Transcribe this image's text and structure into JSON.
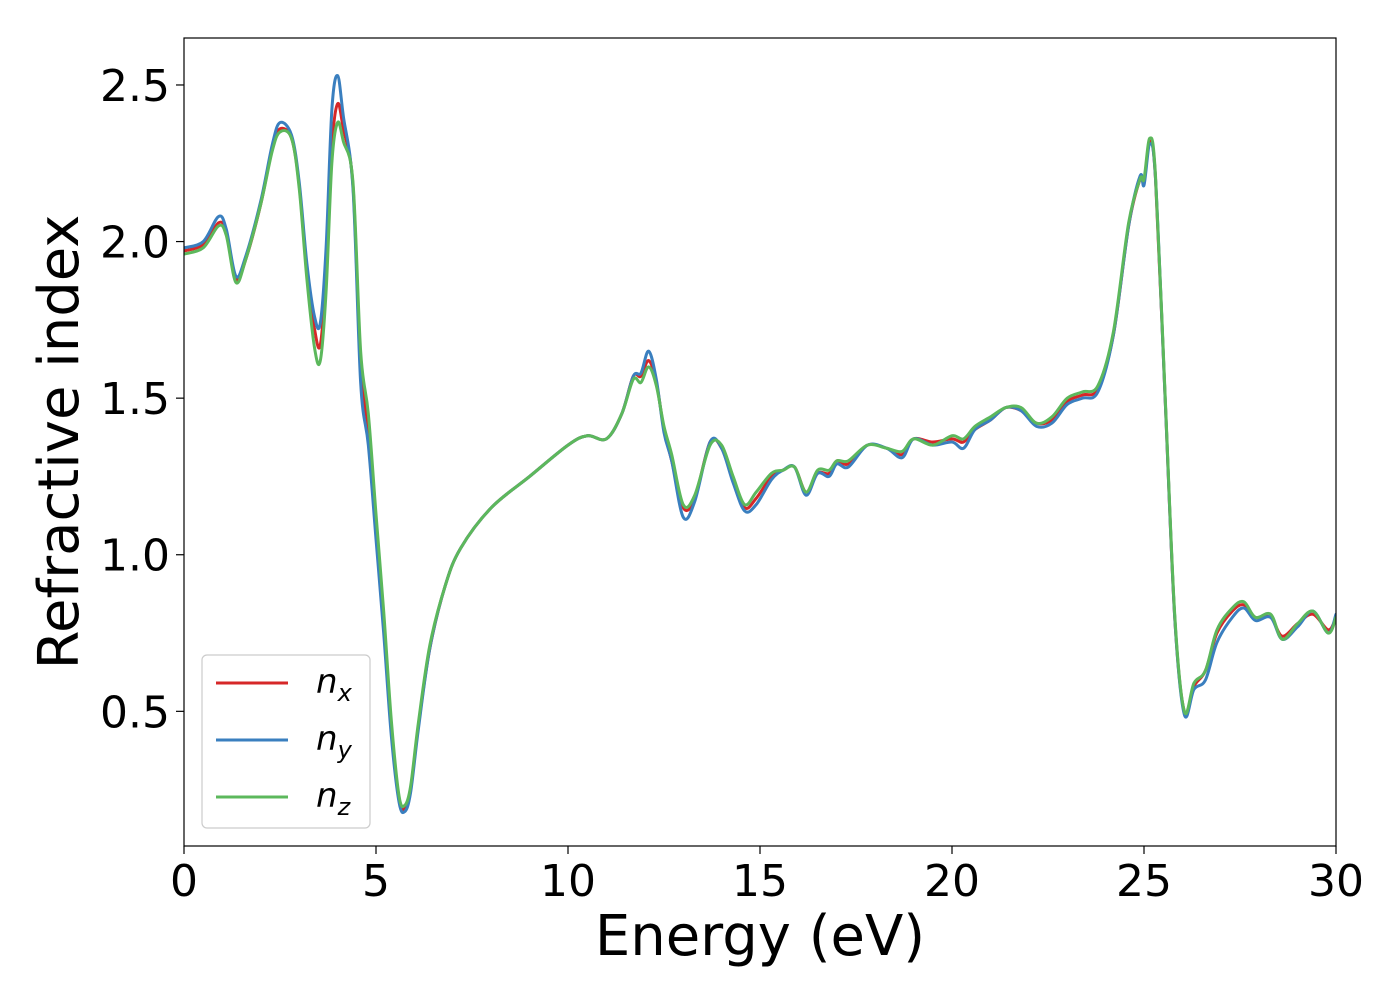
{
  "chart_data": {
    "type": "line",
    "title": "",
    "xlabel": "Energy (eV)",
    "ylabel": "Refractive index",
    "xlim": [
      0,
      30
    ],
    "ylim": [
      0.07,
      2.65
    ],
    "xticks": [
      0,
      5,
      10,
      15,
      20,
      25,
      30
    ],
    "yticks": [
      0.5,
      1.0,
      1.5,
      2.0,
      2.5
    ],
    "xtick_labels": [
      "0",
      "5",
      "10",
      "15",
      "20",
      "25",
      "30"
    ],
    "ytick_labels": [
      "0.5",
      "1.0",
      "1.5",
      "2.0",
      "2.5"
    ],
    "grid": false,
    "legend_position": "lower-left",
    "series": [
      {
        "name": "n_x",
        "label_base": "n",
        "label_sub": "x",
        "color": "#d62728",
        "points": [
          [
            0,
            1.97
          ],
          [
            0.5,
            1.99
          ],
          [
            0.9,
            2.06
          ],
          [
            1.1,
            2.03
          ],
          [
            1.35,
            1.88
          ],
          [
            1.6,
            1.94
          ],
          [
            2.0,
            2.12
          ],
          [
            2.3,
            2.3
          ],
          [
            2.5,
            2.36
          ],
          [
            2.8,
            2.33
          ],
          [
            3.0,
            2.18
          ],
          [
            3.2,
            1.9
          ],
          [
            3.4,
            1.72
          ],
          [
            3.55,
            1.67
          ],
          [
            3.7,
            1.9
          ],
          [
            3.85,
            2.3
          ],
          [
            4.0,
            2.44
          ],
          [
            4.15,
            2.36
          ],
          [
            4.4,
            2.18
          ],
          [
            4.6,
            1.6
          ],
          [
            4.8,
            1.4
          ],
          [
            5.0,
            1.1
          ],
          [
            5.2,
            0.8
          ],
          [
            5.4,
            0.45
          ],
          [
            5.6,
            0.22
          ],
          [
            5.75,
            0.19
          ],
          [
            5.9,
            0.25
          ],
          [
            6.1,
            0.45
          ],
          [
            6.4,
            0.7
          ],
          [
            6.8,
            0.9
          ],
          [
            7.2,
            1.02
          ],
          [
            8.0,
            1.15
          ],
          [
            9.0,
            1.25
          ],
          [
            10.0,
            1.35
          ],
          [
            10.5,
            1.38
          ],
          [
            11.0,
            1.37
          ],
          [
            11.4,
            1.45
          ],
          [
            11.7,
            1.57
          ],
          [
            11.9,
            1.57
          ],
          [
            12.1,
            1.62
          ],
          [
            12.3,
            1.55
          ],
          [
            12.5,
            1.4
          ],
          [
            12.7,
            1.3
          ],
          [
            13.0,
            1.15
          ],
          [
            13.3,
            1.18
          ],
          [
            13.7,
            1.36
          ],
          [
            14.0,
            1.34
          ],
          [
            14.3,
            1.24
          ],
          [
            14.6,
            1.15
          ],
          [
            14.9,
            1.18
          ],
          [
            15.3,
            1.25
          ],
          [
            15.6,
            1.27
          ],
          [
            15.9,
            1.28
          ],
          [
            16.2,
            1.2
          ],
          [
            16.5,
            1.26
          ],
          [
            16.8,
            1.26
          ],
          [
            17.0,
            1.3
          ],
          [
            17.3,
            1.29
          ],
          [
            17.8,
            1.35
          ],
          [
            18.3,
            1.34
          ],
          [
            18.7,
            1.32
          ],
          [
            19.0,
            1.37
          ],
          [
            19.5,
            1.36
          ],
          [
            20.0,
            1.37
          ],
          [
            20.3,
            1.36
          ],
          [
            20.6,
            1.4
          ],
          [
            21.0,
            1.43
          ],
          [
            21.4,
            1.47
          ],
          [
            21.8,
            1.46
          ],
          [
            22.2,
            1.42
          ],
          [
            22.6,
            1.43
          ],
          [
            23.0,
            1.49
          ],
          [
            23.4,
            1.51
          ],
          [
            23.8,
            1.53
          ],
          [
            24.2,
            1.7
          ],
          [
            24.6,
            2.05
          ],
          [
            24.9,
            2.2
          ],
          [
            25.0,
            2.19
          ],
          [
            25.15,
            2.32
          ],
          [
            25.3,
            2.2
          ],
          [
            25.55,
            1.5
          ],
          [
            25.8,
            0.8
          ],
          [
            26.05,
            0.5
          ],
          [
            26.3,
            0.58
          ],
          [
            26.6,
            0.63
          ],
          [
            26.9,
            0.75
          ],
          [
            27.3,
            0.82
          ],
          [
            27.6,
            0.84
          ],
          [
            27.9,
            0.8
          ],
          [
            28.3,
            0.8
          ],
          [
            28.6,
            0.74
          ],
          [
            29.0,
            0.78
          ],
          [
            29.4,
            0.81
          ],
          [
            29.8,
            0.76
          ],
          [
            30.0,
            0.8
          ]
        ]
      },
      {
        "name": "n_y",
        "label_base": "n",
        "label_sub": "y",
        "color": "#3a7fbf",
        "points": [
          [
            0,
            1.98
          ],
          [
            0.5,
            2.0
          ],
          [
            0.9,
            2.08
          ],
          [
            1.1,
            2.04
          ],
          [
            1.35,
            1.89
          ],
          [
            1.6,
            1.95
          ],
          [
            2.0,
            2.13
          ],
          [
            2.3,
            2.31
          ],
          [
            2.5,
            2.38
          ],
          [
            2.8,
            2.34
          ],
          [
            3.0,
            2.19
          ],
          [
            3.2,
            1.93
          ],
          [
            3.4,
            1.76
          ],
          [
            3.55,
            1.74
          ],
          [
            3.7,
            1.98
          ],
          [
            3.85,
            2.42
          ],
          [
            4.0,
            2.53
          ],
          [
            4.15,
            2.4
          ],
          [
            4.4,
            2.17
          ],
          [
            4.6,
            1.55
          ],
          [
            4.8,
            1.35
          ],
          [
            5.0,
            1.05
          ],
          [
            5.2,
            0.75
          ],
          [
            5.4,
            0.42
          ],
          [
            5.6,
            0.21
          ],
          [
            5.75,
            0.18
          ],
          [
            5.9,
            0.24
          ],
          [
            6.1,
            0.44
          ],
          [
            6.4,
            0.7
          ],
          [
            6.8,
            0.9
          ],
          [
            7.2,
            1.02
          ],
          [
            8.0,
            1.15
          ],
          [
            9.0,
            1.25
          ],
          [
            10.0,
            1.35
          ],
          [
            10.5,
            1.38
          ],
          [
            11.0,
            1.37
          ],
          [
            11.4,
            1.45
          ],
          [
            11.7,
            1.57
          ],
          [
            11.9,
            1.58
          ],
          [
            12.1,
            1.65
          ],
          [
            12.3,
            1.56
          ],
          [
            12.5,
            1.39
          ],
          [
            12.7,
            1.3
          ],
          [
            13.0,
            1.12
          ],
          [
            13.3,
            1.17
          ],
          [
            13.7,
            1.36
          ],
          [
            14.0,
            1.34
          ],
          [
            14.3,
            1.23
          ],
          [
            14.6,
            1.14
          ],
          [
            14.9,
            1.16
          ],
          [
            15.3,
            1.24
          ],
          [
            15.6,
            1.27
          ],
          [
            15.9,
            1.28
          ],
          [
            16.2,
            1.19
          ],
          [
            16.5,
            1.26
          ],
          [
            16.8,
            1.25
          ],
          [
            17.0,
            1.29
          ],
          [
            17.3,
            1.28
          ],
          [
            17.8,
            1.35
          ],
          [
            18.3,
            1.34
          ],
          [
            18.7,
            1.31
          ],
          [
            19.0,
            1.37
          ],
          [
            19.5,
            1.35
          ],
          [
            20.0,
            1.36
          ],
          [
            20.3,
            1.34
          ],
          [
            20.6,
            1.4
          ],
          [
            21.0,
            1.43
          ],
          [
            21.4,
            1.47
          ],
          [
            21.8,
            1.46
          ],
          [
            22.2,
            1.41
          ],
          [
            22.6,
            1.42
          ],
          [
            23.0,
            1.48
          ],
          [
            23.4,
            1.5
          ],
          [
            23.8,
            1.52
          ],
          [
            24.2,
            1.7
          ],
          [
            24.6,
            2.05
          ],
          [
            24.9,
            2.21
          ],
          [
            25.0,
            2.18
          ],
          [
            25.15,
            2.31
          ],
          [
            25.3,
            2.2
          ],
          [
            25.55,
            1.5
          ],
          [
            25.8,
            0.8
          ],
          [
            26.05,
            0.49
          ],
          [
            26.3,
            0.57
          ],
          [
            26.6,
            0.6
          ],
          [
            26.9,
            0.72
          ],
          [
            27.3,
            0.8
          ],
          [
            27.6,
            0.83
          ],
          [
            27.9,
            0.79
          ],
          [
            28.3,
            0.8
          ],
          [
            28.6,
            0.73
          ],
          [
            29.0,
            0.77
          ],
          [
            29.4,
            0.82
          ],
          [
            29.8,
            0.75
          ],
          [
            30.0,
            0.81
          ]
        ]
      },
      {
        "name": "n_z",
        "label_base": "n",
        "label_sub": "z",
        "color": "#5cb85c",
        "points": [
          [
            0,
            1.96
          ],
          [
            0.5,
            1.98
          ],
          [
            0.9,
            2.05
          ],
          [
            1.1,
            2.02
          ],
          [
            1.35,
            1.87
          ],
          [
            1.6,
            1.94
          ],
          [
            2.0,
            2.12
          ],
          [
            2.3,
            2.29
          ],
          [
            2.5,
            2.35
          ],
          [
            2.8,
            2.33
          ],
          [
            3.0,
            2.17
          ],
          [
            3.2,
            1.88
          ],
          [
            3.4,
            1.66
          ],
          [
            3.55,
            1.62
          ],
          [
            3.7,
            1.84
          ],
          [
            3.85,
            2.25
          ],
          [
            4.0,
            2.38
          ],
          [
            4.15,
            2.32
          ],
          [
            4.4,
            2.19
          ],
          [
            4.6,
            1.65
          ],
          [
            4.8,
            1.45
          ],
          [
            5.0,
            1.13
          ],
          [
            5.2,
            0.82
          ],
          [
            5.4,
            0.47
          ],
          [
            5.6,
            0.23
          ],
          [
            5.75,
            0.2
          ],
          [
            5.9,
            0.26
          ],
          [
            6.1,
            0.46
          ],
          [
            6.4,
            0.71
          ],
          [
            6.8,
            0.9
          ],
          [
            7.2,
            1.02
          ],
          [
            8.0,
            1.15
          ],
          [
            9.0,
            1.25
          ],
          [
            10.0,
            1.35
          ],
          [
            10.5,
            1.38
          ],
          [
            11.0,
            1.37
          ],
          [
            11.4,
            1.45
          ],
          [
            11.7,
            1.56
          ],
          [
            11.9,
            1.55
          ],
          [
            12.1,
            1.6
          ],
          [
            12.3,
            1.54
          ],
          [
            12.5,
            1.41
          ],
          [
            12.7,
            1.32
          ],
          [
            13.0,
            1.16
          ],
          [
            13.3,
            1.19
          ],
          [
            13.7,
            1.35
          ],
          [
            14.0,
            1.35
          ],
          [
            14.3,
            1.25
          ],
          [
            14.6,
            1.16
          ],
          [
            14.9,
            1.2
          ],
          [
            15.3,
            1.26
          ],
          [
            15.6,
            1.27
          ],
          [
            15.9,
            1.28
          ],
          [
            16.2,
            1.2
          ],
          [
            16.5,
            1.27
          ],
          [
            16.8,
            1.27
          ],
          [
            17.0,
            1.3
          ],
          [
            17.3,
            1.3
          ],
          [
            17.8,
            1.35
          ],
          [
            18.3,
            1.34
          ],
          [
            18.7,
            1.33
          ],
          [
            19.0,
            1.37
          ],
          [
            19.5,
            1.35
          ],
          [
            20.0,
            1.38
          ],
          [
            20.3,
            1.37
          ],
          [
            20.6,
            1.41
          ],
          [
            21.0,
            1.44
          ],
          [
            21.4,
            1.47
          ],
          [
            21.8,
            1.47
          ],
          [
            22.2,
            1.42
          ],
          [
            22.6,
            1.44
          ],
          [
            23.0,
            1.5
          ],
          [
            23.4,
            1.52
          ],
          [
            23.8,
            1.54
          ],
          [
            24.2,
            1.71
          ],
          [
            24.6,
            2.06
          ],
          [
            24.9,
            2.2
          ],
          [
            25.0,
            2.2
          ],
          [
            25.15,
            2.33
          ],
          [
            25.3,
            2.21
          ],
          [
            25.55,
            1.51
          ],
          [
            25.8,
            0.81
          ],
          [
            26.05,
            0.5
          ],
          [
            26.3,
            0.59
          ],
          [
            26.6,
            0.63
          ],
          [
            26.9,
            0.76
          ],
          [
            27.3,
            0.83
          ],
          [
            27.6,
            0.85
          ],
          [
            27.9,
            0.8
          ],
          [
            28.3,
            0.81
          ],
          [
            28.6,
            0.73
          ],
          [
            29.0,
            0.78
          ],
          [
            29.4,
            0.82
          ],
          [
            29.8,
            0.75
          ],
          [
            30.0,
            0.8
          ]
        ]
      }
    ]
  }
}
